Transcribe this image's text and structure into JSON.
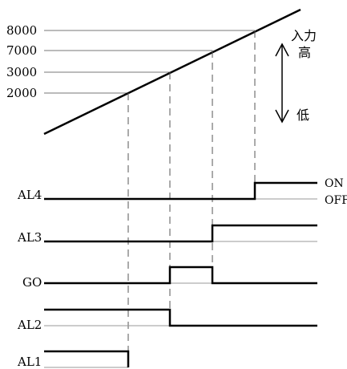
{
  "input_levels": [
    "8000",
    "7000",
    "3000",
    "2000"
  ],
  "direction": {
    "top": "入力",
    "high": "高",
    "low": "低"
  },
  "signals": [
    "AL4",
    "AL3",
    "GO",
    "AL2",
    "AL1"
  ],
  "states": {
    "on": "ON",
    "off": "OFF"
  }
}
